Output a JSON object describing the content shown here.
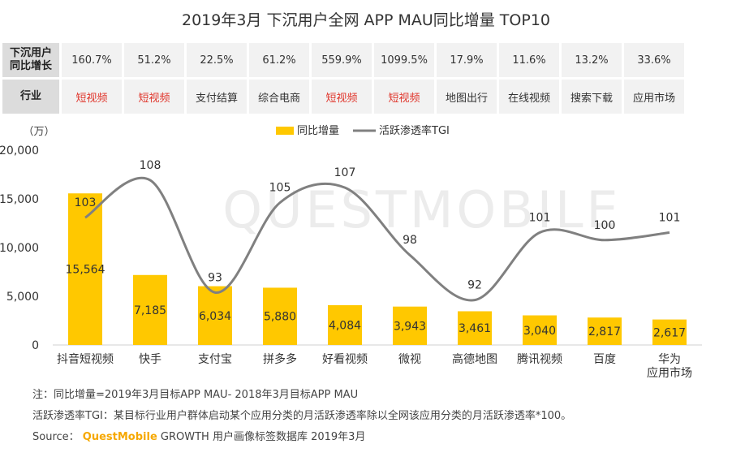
{
  "title": "2019年3月 下沉用户全网 APP MAU同比增量 TOP10",
  "table": {
    "growth_header": "下沉用户\n同比增长",
    "growth": [
      "160.7%",
      "51.2%",
      "22.5%",
      "61.2%",
      "559.9%",
      "1099.5%",
      "17.9%",
      "11.6%",
      "13.2%",
      "33.6%"
    ],
    "industry_header": "行业",
    "industry": [
      "短视频",
      "短视频",
      "支付结算",
      "综合电商",
      "短视频",
      "短视频",
      "地图出行",
      "在线视频",
      "搜索下载",
      "应用市场"
    ],
    "industry_highlight": [
      true,
      true,
      false,
      false,
      true,
      true,
      false,
      false,
      false,
      false
    ]
  },
  "watermark": "QUESTMOBILE",
  "chart_data": {
    "type": "bar",
    "unit_label": "（万）",
    "categories": [
      "抖音短视频",
      "快手",
      "支付宝",
      "拼多多",
      "好看视频",
      "微视",
      "高德地图",
      "腾讯视频",
      "百度",
      "华为\n应用市场"
    ],
    "series": [
      {
        "name": "同比增量",
        "type": "bar",
        "values": [
          15564,
          7185,
          6034,
          5880,
          4084,
          3943,
          3461,
          3040,
          2817,
          2617
        ],
        "labels": [
          "15,564",
          "7,185",
          "6,034",
          "5,880",
          "4,084",
          "3,943",
          "3,461",
          "3,040",
          "2,817",
          "2,617"
        ],
        "color": "#ffc800"
      },
      {
        "name": "活跃渗透率TGI",
        "type": "line",
        "values": [
          103,
          108,
          93,
          105,
          107,
          98,
          92,
          101,
          100,
          101
        ],
        "color": "#808080"
      }
    ],
    "y_ticks": [
      "0",
      "5,000",
      "10,000",
      "15,000",
      "20,000"
    ],
    "ylim": [
      0,
      20000
    ],
    "tgi_range": [
      86,
      112
    ],
    "legend_position": "top-center"
  },
  "notes": {
    "line1": "注：同比增量=2019年3月目标APP MAU- 2018年3月目标APP MAU",
    "line2": "活跃渗透率TGI：某目标行业用户群体启动某个应用分类的月活跃渗透率除以全网该应用分类的月活跃渗透率*100。",
    "source_prefix": "Source：",
    "source_brand": "QuestMobile",
    "source_rest": "GROWTH 用户画像标签数据库 2019年3月"
  }
}
